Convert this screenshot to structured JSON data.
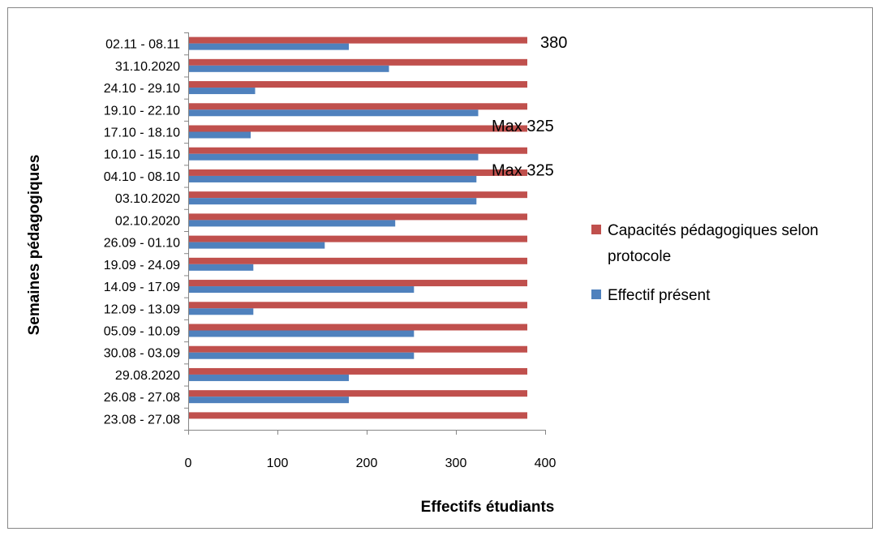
{
  "chart_data": {
    "type": "bar",
    "orientation": "horizontal",
    "categories": [
      "02.11 - 08.11",
      "31.10.2020",
      "24.10 - 29.10",
      "19.10 - 22.10",
      "17.10 - 18.10",
      "10.10 - 15.10",
      "04.10 - 08.10",
      "03.10.2020",
      "02.10.2020",
      "26.09 - 01.10",
      "19.09 - 24.09",
      "14.09 - 17.09",
      "12.09 - 13.09",
      "05.09 - 10.09",
      "30.08 - 03.09",
      "29.08.2020",
      "26.08 - 27.08",
      "23.08 - 27.08"
    ],
    "series": [
      {
        "name": "Capacités pédagogiques selon protocole",
        "color": "#C0504D",
        "values": [
          380,
          380,
          380,
          380,
          380,
          380,
          380,
          380,
          380,
          380,
          380,
          380,
          380,
          380,
          380,
          380,
          380,
          380
        ]
      },
      {
        "name": "Effectif présent",
        "color": "#4F81BD",
        "values": [
          180,
          225,
          75,
          325,
          70,
          325,
          323,
          323,
          232,
          153,
          73,
          253,
          73,
          253,
          253,
          180,
          180,
          0
        ]
      }
    ],
    "xlabel": "Effectifs étudiants",
    "ylabel": "Semaines pédagogiques",
    "xlim": [
      0,
      400
    ],
    "xticks": [
      "0",
      "100",
      "200",
      "300",
      "400"
    ],
    "grid": false,
    "legend_position": "right",
    "legend_labels": {
      "capacity_line1": "Capacités pédagogiques selon",
      "capacity_line2": "protocole",
      "present": "Effectif présent"
    },
    "annotations": [
      {
        "text": "380",
        "row": 0
      },
      {
        "text": "Max 325",
        "row": 3
      },
      {
        "text": "Max 325",
        "row": 5
      }
    ]
  }
}
